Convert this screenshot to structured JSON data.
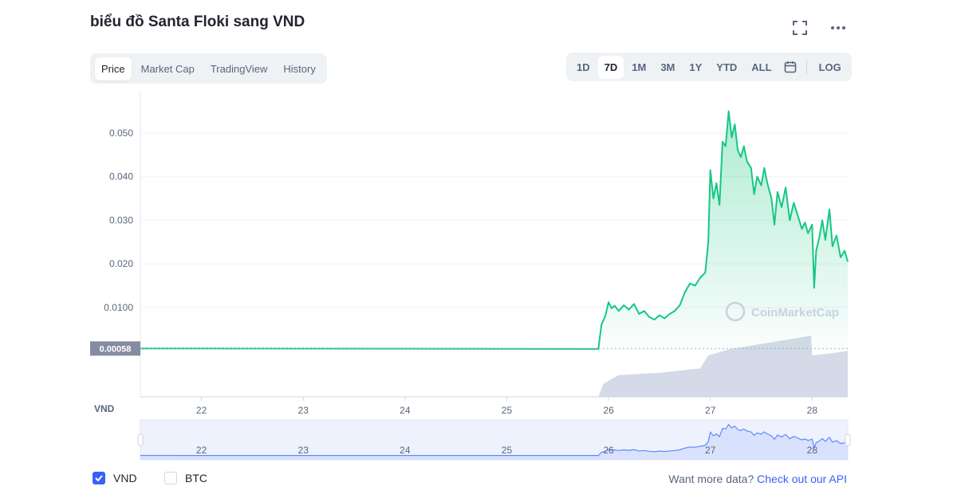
{
  "header": {
    "title": "biểu đồ Santa Floki sang VND"
  },
  "tabs": [
    {
      "label": "Price",
      "active": true
    },
    {
      "label": "Market Cap",
      "active": false
    },
    {
      "label": "TradingView",
      "active": false
    },
    {
      "label": "History",
      "active": false
    }
  ],
  "ranges": [
    {
      "label": "1D",
      "active": false
    },
    {
      "label": "7D",
      "active": true
    },
    {
      "label": "1M",
      "active": false
    },
    {
      "label": "3M",
      "active": false
    },
    {
      "label": "1Y",
      "active": false
    },
    {
      "label": "YTD",
      "active": false
    },
    {
      "label": "ALL",
      "active": false
    }
  ],
  "log_label": "LOG",
  "icons": {
    "fullscreen": "fullscreen-icon",
    "more": "more-dots-icon",
    "calendar": "calendar-icon"
  },
  "colors": {
    "line": "#16c784",
    "volume": "#cfd6e4",
    "navigator": "#6188ff",
    "accent": "#3861fb"
  },
  "chart_data": {
    "type": "line",
    "currency_label": "VND",
    "y_ticks": [
      "0.050",
      "0.040",
      "0.030",
      "0.020",
      "0.0100"
    ],
    "y_tick_values": [
      0.05,
      0.04,
      0.03,
      0.02,
      0.01
    ],
    "ylim": [
      -0.0105,
      0.0595
    ],
    "xlim": [
      21.4,
      28.35
    ],
    "x_ticks": [
      "22",
      "23",
      "24",
      "25",
      "26",
      "27",
      "28"
    ],
    "x_tick_values": [
      22,
      23,
      24,
      25,
      26,
      27,
      28
    ],
    "current_price_label": "0.00058",
    "current_price": 0.00058,
    "watermark": "CoinMarketCap",
    "series": [
      {
        "values": [
          [
            21.4,
            0.00058
          ],
          [
            22.0,
            0.00057
          ],
          [
            23.0,
            0.00055
          ],
          [
            24.0,
            0.00054
          ],
          [
            25.0,
            0.00052
          ],
          [
            25.5,
            0.0005
          ],
          [
            25.9,
            0.0005
          ],
          [
            25.93,
            0.006
          ],
          [
            25.97,
            0.0082
          ],
          [
            26.0,
            0.0112
          ],
          [
            26.03,
            0.0098
          ],
          [
            26.06,
            0.0104
          ],
          [
            26.1,
            0.0092
          ],
          [
            26.15,
            0.0105
          ],
          [
            26.2,
            0.0095
          ],
          [
            26.25,
            0.0108
          ],
          [
            26.3,
            0.0085
          ],
          [
            26.35,
            0.0092
          ],
          [
            26.4,
            0.0078
          ],
          [
            26.45,
            0.0072
          ],
          [
            26.5,
            0.0082
          ],
          [
            26.55,
            0.0075
          ],
          [
            26.6,
            0.0085
          ],
          [
            26.65,
            0.0092
          ],
          [
            26.7,
            0.0105
          ],
          [
            26.75,
            0.0135
          ],
          [
            26.8,
            0.0155
          ],
          [
            26.85,
            0.015
          ],
          [
            26.9,
            0.0168
          ],
          [
            26.95,
            0.018
          ],
          [
            26.98,
            0.025
          ],
          [
            27.0,
            0.0415
          ],
          [
            27.03,
            0.035
          ],
          [
            27.06,
            0.0385
          ],
          [
            27.09,
            0.0335
          ],
          [
            27.12,
            0.048
          ],
          [
            27.15,
            0.047
          ],
          [
            27.18,
            0.055
          ],
          [
            27.21,
            0.049
          ],
          [
            27.24,
            0.052
          ],
          [
            27.27,
            0.046
          ],
          [
            27.3,
            0.0445
          ],
          [
            27.33,
            0.047
          ],
          [
            27.36,
            0.0435
          ],
          [
            27.4,
            0.042
          ],
          [
            27.43,
            0.036
          ],
          [
            27.46,
            0.04
          ],
          [
            27.5,
            0.038
          ],
          [
            27.53,
            0.042
          ],
          [
            27.56,
            0.0385
          ],
          [
            27.6,
            0.035
          ],
          [
            27.63,
            0.029
          ],
          [
            27.66,
            0.0365
          ],
          [
            27.7,
            0.033
          ],
          [
            27.74,
            0.0375
          ],
          [
            27.78,
            0.03
          ],
          [
            27.82,
            0.034
          ],
          [
            27.86,
            0.031
          ],
          [
            27.9,
            0.028
          ],
          [
            27.93,
            0.0295
          ],
          [
            27.96,
            0.027
          ],
          [
            28.0,
            0.029
          ],
          [
            28.02,
            0.0145
          ],
          [
            28.04,
            0.023
          ],
          [
            28.07,
            0.026
          ],
          [
            28.1,
            0.03
          ],
          [
            28.13,
            0.0255
          ],
          [
            28.17,
            0.0325
          ],
          [
            28.2,
            0.024
          ],
          [
            28.24,
            0.0265
          ],
          [
            28.28,
            0.0215
          ],
          [
            28.32,
            0.023
          ],
          [
            28.35,
            0.0205
          ]
        ]
      }
    ],
    "volume": [
      [
        25.9,
        0.0
      ],
      [
        25.95,
        0.003
      ],
      [
        26.1,
        0.005
      ],
      [
        26.5,
        0.0055
      ],
      [
        26.9,
        0.0065
      ],
      [
        26.98,
        0.0095
      ],
      [
        27.2,
        0.011
      ],
      [
        27.6,
        0.0125
      ],
      [
        27.99,
        0.014
      ],
      [
        28.0,
        0.0095
      ],
      [
        28.2,
        0.01
      ],
      [
        28.35,
        0.0105
      ]
    ],
    "navigator": {
      "x_ticks": [
        "22",
        "23",
        "24",
        "25",
        "26",
        "27",
        "28"
      ]
    }
  },
  "legend": {
    "items": [
      {
        "label": "VND",
        "checked": true
      },
      {
        "label": "BTC",
        "checked": false
      }
    ]
  },
  "footer": {
    "prefix": "Want more data?",
    "link": "Check out our API"
  }
}
